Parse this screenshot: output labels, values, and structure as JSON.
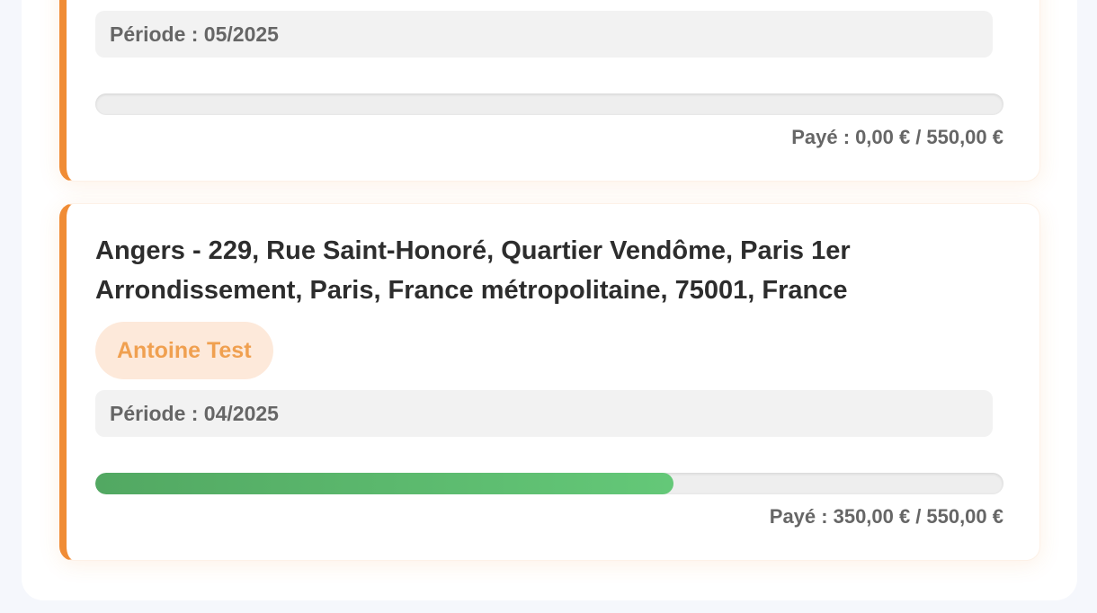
{
  "cards": [
    {
      "period": "Période : 05/2025",
      "payment": {
        "prefix": "Payé :",
        "paid": {
          "value": 0,
          "label": "0,00 €"
        },
        "separator": "/",
        "total": {
          "value": 550,
          "label": "550,00 €"
        }
      }
    },
    {
      "title": "Angers - 229, Rue Saint-Honoré, Quartier Vendôme, Paris 1er Arrondissement, Paris, France métropolitaine, 75001, France",
      "tag": "Antoine Test",
      "period": "Période : 04/2025",
      "payment": {
        "prefix": "Payé :",
        "paid": {
          "value": 350,
          "label": "350,00 €"
        },
        "separator": "/",
        "total": {
          "value": 550,
          "label": "550,00 €"
        }
      }
    }
  ]
}
